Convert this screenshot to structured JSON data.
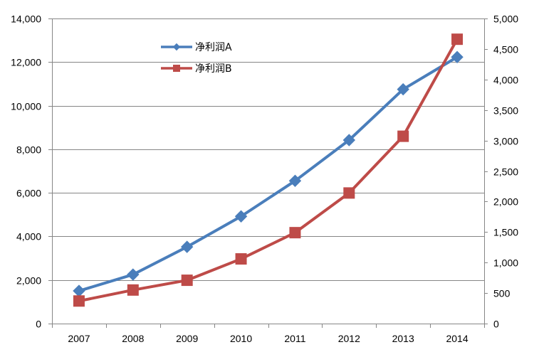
{
  "chart_data": {
    "type": "line",
    "title": "",
    "xlabel": "",
    "ylabel": "",
    "categories": [
      "2007",
      "2008",
      "2009",
      "2010",
      "2011",
      "2012",
      "2013",
      "2014"
    ],
    "ylim_left": [
      0,
      14000
    ],
    "ylim_right": [
      0,
      5000
    ],
    "yticks_left": [
      "0",
      "2,000",
      "4,000",
      "6,000",
      "8,000",
      "10,000",
      "12,000",
      "14,000"
    ],
    "yticks_right": [
      "0",
      "500",
      "1,000",
      "1,500",
      "2,000",
      "2,500",
      "3,000",
      "3,500",
      "4,000",
      "4,500",
      "5,000"
    ],
    "grid": true,
    "legend_position": "top-left",
    "series": [
      {
        "name": "净利润A",
        "axis": "left",
        "color": "#4A7EBB",
        "marker": "diamond",
        "values": [
          1500,
          2250,
          3520,
          4920,
          6550,
          8420,
          10750,
          12230
        ]
      },
      {
        "name": "净利润B",
        "axis": "right",
        "color": "#BE4B48",
        "marker": "square",
        "values": [
          370,
          550,
          710,
          1060,
          1490,
          2140,
          3070,
          4660
        ]
      }
    ]
  },
  "colors": {
    "gridline": "#868686",
    "axis": "#868686"
  }
}
